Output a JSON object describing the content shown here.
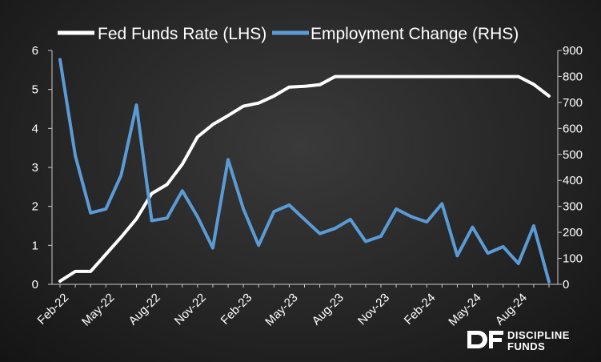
{
  "chart_data": {
    "type": "line",
    "x": [
      "Feb-22",
      "Mar-22",
      "Apr-22",
      "May-22",
      "Jun-22",
      "Jul-22",
      "Aug-22",
      "Sep-22",
      "Oct-22",
      "Nov-22",
      "Dec-22",
      "Jan-23",
      "Feb-23",
      "Mar-23",
      "Apr-23",
      "May-23",
      "Jun-23",
      "Jul-23",
      "Aug-23",
      "Sep-23",
      "Oct-23",
      "Nov-23",
      "Dec-23",
      "Jan-24",
      "Feb-24",
      "Mar-24",
      "Apr-24",
      "May-24",
      "Jun-24",
      "Jul-24",
      "Aug-24",
      "Sep-24",
      "Oct-24"
    ],
    "x_tick_labels": [
      "Feb-22",
      "May-22",
      "Aug-22",
      "Nov-22",
      "Feb-23",
      "May-23",
      "Aug-23",
      "Nov-23",
      "Feb-24",
      "May-24",
      "Aug-24"
    ],
    "series": [
      {
        "name": "Fed Funds Rate (LHS)",
        "axis": "left",
        "color": "#ffffff",
        "values": [
          0.08,
          0.33,
          0.33,
          0.77,
          1.21,
          1.68,
          2.33,
          2.56,
          3.08,
          3.78,
          4.1,
          4.33,
          4.57,
          4.65,
          4.83,
          5.06,
          5.08,
          5.12,
          5.33,
          5.33,
          5.33,
          5.33,
          5.33,
          5.33,
          5.33,
          5.33,
          5.33,
          5.33,
          5.33,
          5.33,
          5.33,
          5.13,
          4.83
        ]
      },
      {
        "name": "Employment Change (RHS)",
        "axis": "right",
        "color": "#5b9bd5",
        "values": [
          865,
          495,
          275,
          290,
          420,
          690,
          245,
          255,
          360,
          260,
          140,
          480,
          290,
          150,
          280,
          305,
          250,
          195,
          215,
          250,
          165,
          185,
          290,
          260,
          240,
          310,
          110,
          220,
          120,
          145,
          80,
          225,
          10
        ]
      }
    ],
    "y_left": {
      "min": 0,
      "max": 6,
      "ticks": [
        "0",
        "1",
        "2",
        "3",
        "4",
        "5",
        "6"
      ]
    },
    "y_right": {
      "min": 0,
      "max": 900,
      "ticks": [
        "0",
        "100",
        "200",
        "300",
        "400",
        "500",
        "600",
        "700",
        "800",
        "900"
      ]
    },
    "legend_placement": "top-center",
    "grid": false
  },
  "logo": {
    "mark": "DF",
    "line1": "DISCIPLINE",
    "line2": "FUNDS"
  }
}
